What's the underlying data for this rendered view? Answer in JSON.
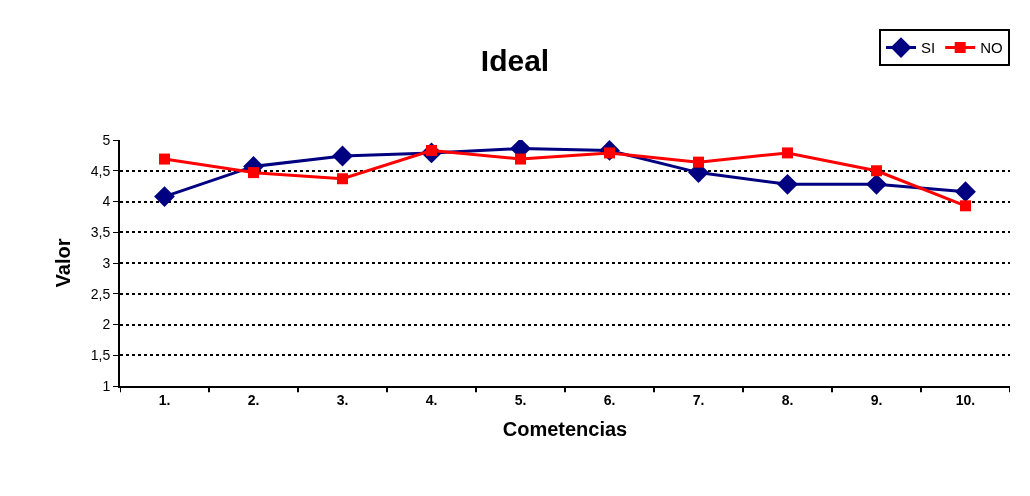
{
  "chart_data": {
    "type": "line",
    "title": "Ideal",
    "xlabel": "Cometencias",
    "ylabel": "Valor",
    "categories": [
      "1.",
      "2.",
      "3.",
      "4.",
      "5.",
      "6.",
      "7.",
      "8.",
      "9.",
      "10."
    ],
    "series": [
      {
        "name": "SI",
        "color": "#000080",
        "marker": "diamond",
        "values": [
          4.08,
          4.57,
          4.74,
          4.79,
          4.86,
          4.83,
          4.47,
          4.28,
          4.28,
          4.16
        ]
      },
      {
        "name": "NO",
        "color": "#ff0000",
        "marker": "square",
        "values": [
          4.69,
          4.47,
          4.37,
          4.83,
          4.69,
          4.79,
          4.64,
          4.79,
          4.5,
          3.93
        ]
      }
    ],
    "ylim": [
      1,
      5
    ],
    "yticks": [
      1,
      {
        "value": 1.5,
        "label": "1,5"
      },
      2,
      {
        "value": 2.5,
        "label": "2,5"
      },
      3,
      {
        "value": 3.5,
        "label": "3,5"
      },
      4,
      {
        "value": 4.5,
        "label": "4,5"
      },
      5
    ],
    "grid": "y",
    "line_style": "solid",
    "legend": "top right"
  }
}
